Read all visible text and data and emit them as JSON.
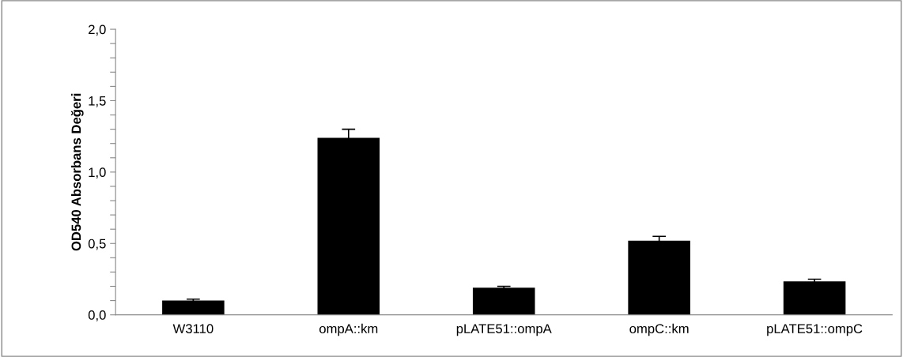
{
  "chart_data": {
    "type": "bar",
    "ylabel": "OD540 Absorbans Değeri",
    "categories": [
      "W3110",
      "ompA::km",
      "pLATE51::ompA",
      "ompC::km",
      "pLATE51::ompC"
    ],
    "values": [
      0.1,
      1.24,
      0.19,
      0.52,
      0.235
    ],
    "errors": [
      0.01,
      0.06,
      0.01,
      0.03,
      0.015
    ],
    "color": "#000000",
    "ylim": [
      0,
      2.0
    ],
    "yticks": [
      {
        "value": 0,
        "label": "0,0"
      },
      {
        "value": 0.1,
        "label": null
      },
      {
        "value": 0.2,
        "label": null
      },
      {
        "value": 0.3,
        "label": null
      },
      {
        "value": 0.4,
        "label": null
      },
      {
        "value": 0.5,
        "label": "0,5"
      },
      {
        "value": 0.6,
        "label": null
      },
      {
        "value": 0.7,
        "label": null
      },
      {
        "value": 0.8,
        "label": null
      },
      {
        "value": 0.9,
        "label": null
      },
      {
        "value": 1.0,
        "label": "1,0"
      },
      {
        "value": 1.1,
        "label": null
      },
      {
        "value": 1.2,
        "label": null
      },
      {
        "value": 1.3,
        "label": null
      },
      {
        "value": 1.4,
        "label": null
      },
      {
        "value": 1.5,
        "label": "1,5"
      },
      {
        "value": 1.6,
        "label": null
      },
      {
        "value": 1.7,
        "label": null
      },
      {
        "value": 1.8,
        "label": null
      },
      {
        "value": 1.9,
        "label": null
      },
      {
        "value": 2.0,
        "label": "2,0"
      }
    ],
    "grid": false,
    "legend": false
  }
}
